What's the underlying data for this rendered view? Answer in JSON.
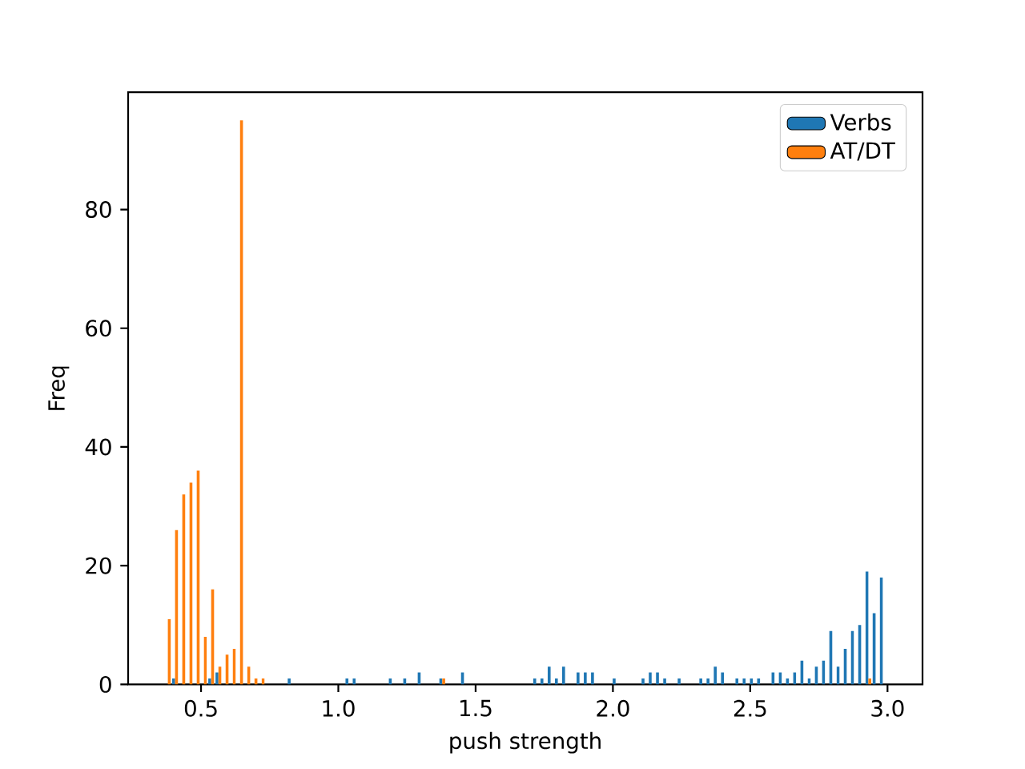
{
  "chart_data": {
    "type": "histogram",
    "xlabel": "push strength",
    "ylabel": "Freq",
    "bins": [
      0.366,
      0.3923,
      0.4186,
      0.4449,
      0.4712,
      0.4975,
      0.5238,
      0.5501,
      0.5764,
      0.6027,
      0.629,
      0.6553,
      0.6816,
      0.7079,
      0.7342,
      0.7605,
      0.7868,
      0.8131,
      0.8394,
      0.8657,
      0.892,
      0.9183,
      0.9446,
      0.9709,
      0.9972,
      1.0235,
      1.0498,
      1.0761,
      1.1024,
      1.1287,
      1.155,
      1.1813,
      1.2076,
      1.2339,
      1.2602,
      1.2865,
      1.3128,
      1.3391,
      1.3654,
      1.3917,
      1.418,
      1.4443,
      1.4706,
      1.4969,
      1.5232,
      1.5495,
      1.5758,
      1.6021,
      1.6284,
      1.6547,
      1.681,
      1.7073,
      1.7336,
      1.7599,
      1.7862,
      1.8125,
      1.8388,
      1.8651,
      1.8914,
      1.9177,
      1.944,
      1.9703,
      1.9966,
      2.0229,
      2.0492,
      2.0755,
      2.1018,
      2.1281,
      2.1544,
      2.1807,
      2.207,
      2.2333,
      2.2596,
      2.2859,
      2.3122,
      2.3385,
      2.3648,
      2.3911,
      2.4174,
      2.4437,
      2.47,
      2.4963,
      2.5226,
      2.5489,
      2.5752,
      2.6015,
      2.6278,
      2.6541,
      2.6804,
      2.7067,
      2.733,
      2.7593,
      2.7856,
      2.8119,
      2.8382,
      2.8645,
      2.8908,
      2.9171,
      2.9434,
      2.9697,
      2.996
    ],
    "series": [
      {
        "name": "Verbs",
        "color": "#1f77b4",
        "values": [
          0,
          1,
          0,
          0,
          0,
          0,
          1,
          2,
          0,
          0,
          0,
          0,
          0,
          0,
          0,
          0,
          0,
          1,
          0,
          0,
          0,
          0,
          0,
          0,
          0,
          1,
          1,
          0,
          0,
          0,
          0,
          1,
          0,
          1,
          0,
          2,
          0,
          0,
          1,
          0,
          0,
          2,
          0,
          0,
          0,
          0,
          0,
          0,
          0,
          0,
          0,
          1,
          1,
          3,
          1,
          3,
          0,
          2,
          2,
          2,
          0,
          0,
          1,
          0,
          0,
          0,
          1,
          2,
          2,
          1,
          0,
          1,
          0,
          0,
          1,
          1,
          3,
          2,
          0,
          1,
          1,
          1,
          1,
          0,
          2,
          2,
          1,
          2,
          4,
          1,
          3,
          4,
          9,
          3,
          6,
          9,
          10,
          19,
          12,
          18
        ]
      },
      {
        "name": "AT/DT",
        "color": "#ff7f0e",
        "values": [
          11,
          26,
          32,
          34,
          36,
          8,
          16,
          3,
          5,
          6,
          95,
          3,
          1,
          1,
          0,
          0,
          0,
          0,
          0,
          0,
          0,
          0,
          0,
          0,
          0,
          0,
          0,
          0,
          0,
          0,
          0,
          0,
          0,
          0,
          0,
          0,
          0,
          0,
          1,
          0,
          0,
          0,
          0,
          0,
          0,
          0,
          0,
          0,
          0,
          0,
          0,
          0,
          0,
          0,
          0,
          0,
          0,
          0,
          0,
          0,
          0,
          0,
          0,
          0,
          0,
          0,
          0,
          0,
          0,
          0,
          0,
          0,
          0,
          0,
          0,
          0,
          0,
          0,
          0,
          0,
          0,
          0,
          0,
          0,
          0,
          0,
          0,
          0,
          0,
          0,
          0,
          0,
          0,
          0,
          0,
          0,
          0,
          1,
          0,
          0
        ]
      }
    ],
    "xlim": [
      0.2345,
      3.1275
    ],
    "ylim": [
      0,
      99.75
    ],
    "xticks": [
      {
        "value": 0.5,
        "label": "0.5"
      },
      {
        "value": 1.0,
        "label": "1.0"
      },
      {
        "value": 1.5,
        "label": "1.5"
      },
      {
        "value": 2.0,
        "label": "2.0"
      },
      {
        "value": 2.5,
        "label": "2.5"
      },
      {
        "value": 3.0,
        "label": "3.0"
      }
    ],
    "yticks": [
      0,
      20,
      40,
      60,
      80
    ],
    "legend": "top right",
    "grid": false
  }
}
